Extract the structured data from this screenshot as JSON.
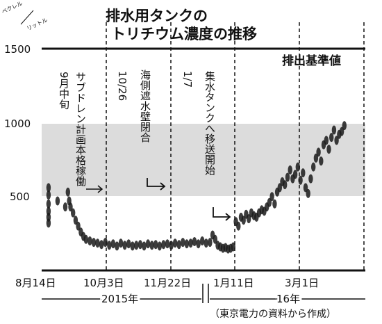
{
  "chart_data": {
    "type": "scatter",
    "title": [
      "排水用タンクの",
      "トリチウム濃度の推移"
    ],
    "unit": "ベクレル／リットル",
    "unit_top": "ベクレル",
    "unit_bottom": "リットル",
    "ylim": [
      0,
      1500
    ],
    "y_ticks": [
      1500,
      1000,
      500
    ],
    "y_tick_labels": [
      "1500",
      "1000",
      "500"
    ],
    "x_tick_labels": [
      "8月14日",
      "10月3日",
      "11月22日",
      "1月11日",
      "3月1日"
    ],
    "year_labels": [
      "2015年",
      "16年"
    ],
    "source": "（東京電力の資料から作成）",
    "reference_band": {
      "from": 500,
      "to": 1000
    },
    "reference_line": {
      "value": 1500,
      "label": "排出基準値"
    },
    "events": [
      {
        "date": "9月中旬",
        "label": [
          "サブドレン計画本格稼働"
        ]
      },
      {
        "date": "10月3日",
        "label": [
          "10/26",
          "海側遮水壁閉合"
        ]
      },
      {
        "date": "11月22日",
        "label": [
          "1/7",
          "集水タンクへ移送開始"
        ]
      }
    ],
    "grid": false,
    "series": [
      {
        "points": [
          [
            1,
            560
          ],
          [
            1,
            510
          ],
          [
            1,
            450
          ],
          [
            1,
            400
          ],
          [
            1,
            360
          ],
          [
            1,
            320
          ],
          [
            8,
            470
          ],
          [
            14,
            430
          ],
          [
            16,
            530
          ],
          [
            17,
            470
          ],
          [
            18,
            430
          ],
          [
            20,
            390
          ],
          [
            22,
            340
          ],
          [
            24,
            300
          ],
          [
            26,
            260
          ],
          [
            28,
            230
          ],
          [
            30,
            210
          ],
          [
            33,
            200
          ],
          [
            36,
            190
          ],
          [
            39,
            185
          ],
          [
            42,
            175
          ],
          [
            45,
            190
          ],
          [
            48,
            170
          ],
          [
            51,
            180
          ],
          [
            54,
            165
          ],
          [
            57,
            185
          ],
          [
            60,
            170
          ],
          [
            63,
            180
          ],
          [
            66,
            165
          ],
          [
            69,
            170
          ],
          [
            72,
            175
          ],
          [
            75,
            165
          ],
          [
            78,
            180
          ],
          [
            81,
            170
          ],
          [
            84,
            175
          ],
          [
            87,
            165
          ],
          [
            90,
            175
          ],
          [
            93,
            180
          ],
          [
            96,
            170
          ],
          [
            99,
            185
          ],
          [
            102,
            175
          ],
          [
            105,
            190
          ],
          [
            108,
            180
          ],
          [
            111,
            185
          ],
          [
            114,
            195
          ],
          [
            117,
            180
          ],
          [
            120,
            200
          ],
          [
            123,
            185
          ],
          [
            126,
            190
          ],
          [
            128,
            240
          ],
          [
            130,
            210
          ],
          [
            132,
            170
          ],
          [
            134,
            160
          ],
          [
            136,
            150
          ],
          [
            138,
            155
          ],
          [
            140,
            145
          ],
          [
            142,
            150
          ],
          [
            144,
            160
          ],
          [
            146,
            330
          ],
          [
            148,
            300
          ],
          [
            150,
            360
          ],
          [
            152,
            340
          ],
          [
            154,
            380
          ],
          [
            156,
            350
          ],
          [
            158,
            390
          ],
          [
            160,
            370
          ],
          [
            162,
            360
          ],
          [
            164,
            390
          ],
          [
            166,
            410
          ],
          [
            168,
            400
          ],
          [
            170,
            430
          ],
          [
            172,
            460
          ],
          [
            174,
            500
          ],
          [
            176,
            450
          ],
          [
            178,
            530
          ],
          [
            180,
            560
          ],
          [
            182,
            600
          ],
          [
            184,
            580
          ],
          [
            186,
            630
          ],
          [
            188,
            680
          ],
          [
            190,
            620
          ],
          [
            192,
            650
          ],
          [
            194,
            700
          ],
          [
            196,
            610
          ],
          [
            198,
            660
          ],
          [
            200,
            560
          ],
          [
            202,
            520
          ],
          [
            204,
            620
          ],
          [
            206,
            700
          ],
          [
            208,
            760
          ],
          [
            210,
            800
          ],
          [
            212,
            740
          ],
          [
            214,
            850
          ],
          [
            216,
            880
          ],
          [
            218,
            820
          ],
          [
            220,
            900
          ],
          [
            222,
            950
          ],
          [
            224,
            880
          ],
          [
            226,
            920
          ],
          [
            228,
            940
          ],
          [
            230,
            980
          ]
        ]
      }
    ]
  }
}
